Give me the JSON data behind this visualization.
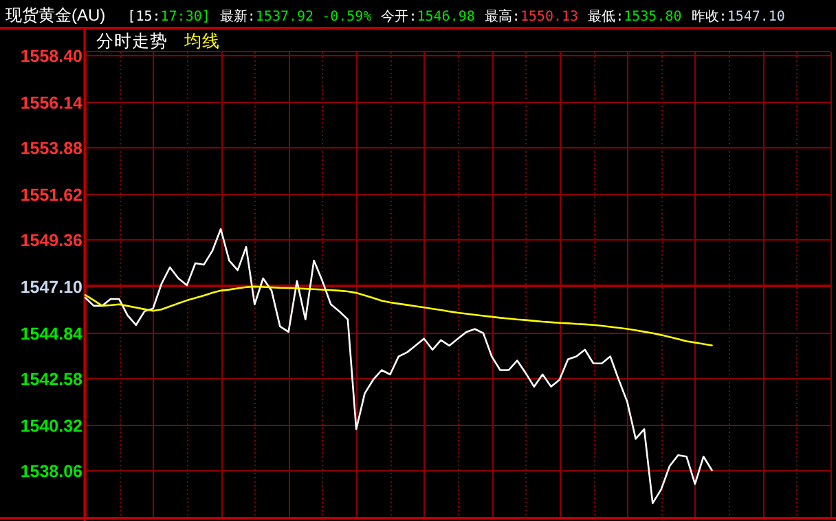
{
  "chart_data": {
    "type": "line",
    "title": "现货黄金(AU)",
    "annotations": [
      "[15:17:30]",
      "最新:1537.92 -0.59%",
      "今开:1546.98",
      "最高:1550.13",
      "最低:1535.80",
      "昨收:1547.10"
    ],
    "categories": [
      null,
      null,
      null,
      null,
      null,
      null,
      null,
      null,
      null,
      null,
      null,
      null,
      null,
      null,
      null,
      null,
      null,
      null,
      null,
      null,
      null,
      null,
      null,
      null,
      null,
      null,
      null,
      null,
      null,
      null,
      null,
      null,
      null,
      null,
      null,
      null,
      null,
      null,
      null,
      null,
      null,
      null,
      null,
      null,
      null,
      null,
      null,
      null,
      null,
      null,
      null,
      null,
      null,
      null,
      null,
      null,
      null,
      null,
      null,
      null,
      null,
      null,
      null,
      null,
      null,
      null,
      null,
      null,
      null,
      null,
      null,
      null,
      null,
      null,
      null,
      null,
      null,
      null,
      null,
      null,
      null,
      null,
      null,
      null,
      null,
      null,
      null,
      null,
      null
    ],
    "ylim": [
      1535.8,
      1558.4
    ],
    "yticks": [
      {
        "value": 1558.4,
        "label": "1558.40"
      },
      1556.14,
      1553.88,
      1551.62,
      1549.36,
      {
        "value": 1547.1,
        "label": "1547.10"
      },
      1544.84,
      1542.58,
      1540.32,
      1538.06
    ],
    "tick_labels": "y",
    "grid": true,
    "ref_lines": [
      {
        "axis": "y",
        "value": 1547.1,
        "color": "#a00000"
      }
    ],
    "series": [
      {
        "name": "分时走势",
        "color": "#ffffff",
        "values": [
          1546.53,
          1546.13,
          1546.13,
          1546.46,
          1546.46,
          1545.66,
          1545.19,
          1545.86,
          1545.99,
          1547.2,
          1548.01,
          1547.47,
          1547.13,
          1548.21,
          1548.14,
          1548.81,
          1549.88,
          1548.34,
          1547.87,
          1549.01,
          1546.2,
          1547.47,
          1546.87,
          1545.12,
          1544.85,
          1547.34,
          1545.46,
          1548.34,
          1547.34,
          1546.2,
          1545.86,
          1545.46,
          1540.09,
          1541.84,
          1542.51,
          1542.98,
          1542.77,
          1543.65,
          1543.85,
          1544.18,
          1544.52,
          1543.98,
          1544.45,
          1544.18,
          1544.52,
          1544.85,
          1544.99,
          1544.79,
          1543.65,
          1542.98,
          1542.98,
          1543.45,
          1542.84,
          1542.17,
          1542.77,
          1542.17,
          1542.51,
          1543.51,
          1543.65,
          1543.98,
          1543.31,
          1543.31,
          1543.65,
          1542.5,
          1541.43,
          1539.62,
          1540.09,
          1536.47,
          1537.14,
          1538.28,
          1538.82,
          1538.75,
          1537.41,
          1538.75,
          1538.08,
          null,
          null,
          null,
          null,
          null,
          null,
          null,
          null,
          null,
          null,
          null,
          null,
          null,
          null
        ]
      },
      {
        "name": "均线",
        "color": "#ffff00",
        "values": [
          1546.66,
          1546.4,
          1546.13,
          1546.16,
          1546.2,
          1546.12,
          1546.04,
          1545.96,
          1545.88,
          1545.95,
          1546.1,
          1546.25,
          1546.39,
          1546.51,
          1546.63,
          1546.76,
          1546.87,
          1546.92,
          1546.98,
          1547.04,
          1547.07,
          1547.05,
          1547.03,
          1547.01,
          1547.0,
          1546.98,
          1546.96,
          1546.94,
          1546.92,
          1546.9,
          1546.87,
          1546.83,
          1546.76,
          1546.64,
          1546.51,
          1546.38,
          1546.29,
          1546.23,
          1546.17,
          1546.11,
          1546.05,
          1545.98,
          1545.92,
          1545.85,
          1545.79,
          1545.74,
          1545.69,
          1545.64,
          1545.59,
          1545.54,
          1545.5,
          1545.46,
          1545.43,
          1545.39,
          1545.35,
          1545.32,
          1545.29,
          1545.27,
          1545.24,
          1545.22,
          1545.19,
          1545.15,
          1545.1,
          1545.05,
          1545.0,
          1544.93,
          1544.86,
          1544.79,
          1544.7,
          1544.6,
          1544.5,
          1544.39,
          1544.33,
          1544.26,
          1544.19,
          null,
          null,
          null,
          null,
          null,
          null,
          null,
          null,
          null,
          null,
          null,
          null,
          null,
          null
        ]
      }
    ]
  }
}
